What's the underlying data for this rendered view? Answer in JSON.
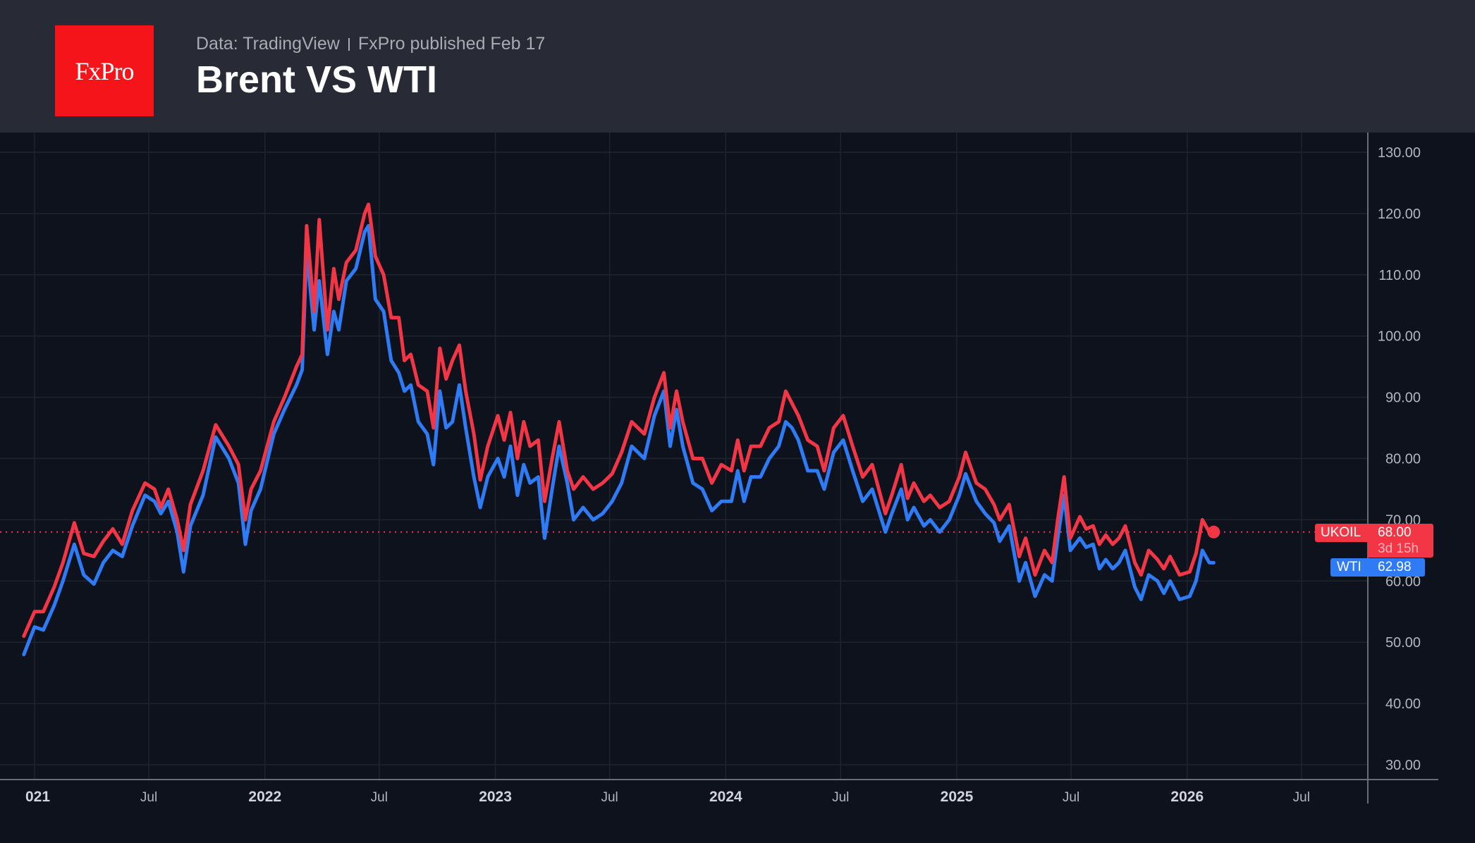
{
  "header": {
    "logo_text": "FxPro",
    "source": "Data: TradingView",
    "published": "FxPro published Feb 17",
    "title": "Brent VS WTI"
  },
  "colors": {
    "brent": "#f23645",
    "wti": "#2f7bf5",
    "background": "#0d121d",
    "header": "#282a35",
    "logo": "#f5141a"
  },
  "price_tags": {
    "ukoil_label": "UKOIL",
    "ukoil_value": "68.00",
    "ukoil_countdown": "3d 15h",
    "wti_label": "WTI",
    "wti_value": "62.98"
  },
  "chart_data": {
    "type": "line",
    "title": "Brent VS WTI",
    "ylim": [
      30,
      130
    ],
    "y_ticks": [
      "30.00",
      "40.00",
      "50.00",
      "60.00",
      "70.00",
      "80.00",
      "90.00",
      "100.00",
      "110.00",
      "120.00",
      "130.00"
    ],
    "x_ticks": [
      {
        "label": "021",
        "date": "2021-01-01",
        "bold": true
      },
      {
        "label": "Jul",
        "date": "2021-07-01",
        "bold": false
      },
      {
        "label": "2022",
        "date": "2022-01-01",
        "bold": true
      },
      {
        "label": "Jul",
        "date": "2022-07-01",
        "bold": false
      },
      {
        "label": "2023",
        "date": "2023-01-01",
        "bold": true
      },
      {
        "label": "Jul",
        "date": "2023-07-01",
        "bold": false
      },
      {
        "label": "2024",
        "date": "2024-01-01",
        "bold": true
      },
      {
        "label": "Jul",
        "date": "2024-07-01",
        "bold": false
      },
      {
        "label": "2025",
        "date": "2025-01-01",
        "bold": true
      },
      {
        "label": "Jul",
        "date": "2025-07-01",
        "bold": false
      },
      {
        "label": "2026",
        "date": "2026-01-01",
        "bold": true
      },
      {
        "label": "Jul",
        "date": "2026-07-01",
        "bold": false
      }
    ],
    "grid": true,
    "current_price_line": 68.0,
    "x": [
      "2020-12-15",
      "2021-01-01",
      "2021-01-15",
      "2021-02-01",
      "2021-02-15",
      "2021-03-05",
      "2021-03-20",
      "2021-04-05",
      "2021-04-20",
      "2021-05-05",
      "2021-05-20",
      "2021-06-05",
      "2021-06-25",
      "2021-07-10",
      "2021-07-20",
      "2021-08-01",
      "2021-08-15",
      "2021-08-25",
      "2021-09-05",
      "2021-09-25",
      "2021-10-15",
      "2021-11-05",
      "2021-11-20",
      "2021-12-01",
      "2021-12-10",
      "2021-12-25",
      "2022-01-15",
      "2022-02-01",
      "2022-02-20",
      "2022-03-01",
      "2022-03-08",
      "2022-03-20",
      "2022-03-28",
      "2022-04-10",
      "2022-04-20",
      "2022-04-28",
      "2022-05-10",
      "2022-05-25",
      "2022-06-08",
      "2022-06-14",
      "2022-06-25",
      "2022-07-08",
      "2022-07-20",
      "2022-08-01",
      "2022-08-10",
      "2022-08-20",
      "2022-09-01",
      "2022-09-15",
      "2022-09-25",
      "2022-10-05",
      "2022-10-15",
      "2022-10-25",
      "2022-11-05",
      "2022-11-15",
      "2022-11-28",
      "2022-12-08",
      "2022-12-20",
      "2023-01-05",
      "2023-01-15",
      "2023-01-25",
      "2023-02-05",
      "2023-02-15",
      "2023-02-25",
      "2023-03-10",
      "2023-03-20",
      "2023-04-01",
      "2023-04-12",
      "2023-04-25",
      "2023-05-05",
      "2023-05-20",
      "2023-06-05",
      "2023-06-20",
      "2023-07-05",
      "2023-07-20",
      "2023-08-05",
      "2023-08-25",
      "2023-09-10",
      "2023-09-25",
      "2023-10-05",
      "2023-10-15",
      "2023-10-25",
      "2023-11-10",
      "2023-11-25",
      "2023-12-10",
      "2023-12-25",
      "2024-01-10",
      "2024-01-20",
      "2024-01-30",
      "2024-02-10",
      "2024-02-25",
      "2024-03-10",
      "2024-03-25",
      "2024-04-05",
      "2024-04-15",
      "2024-04-25",
      "2024-05-10",
      "2024-05-25",
      "2024-06-05",
      "2024-06-20",
      "2024-07-05",
      "2024-07-20",
      "2024-08-05",
      "2024-08-20",
      "2024-09-10",
      "2024-09-20",
      "2024-10-05",
      "2024-10-15",
      "2024-10-25",
      "2024-11-10",
      "2024-11-20",
      "2024-12-05",
      "2024-12-20",
      "2025-01-05",
      "2025-01-15",
      "2025-02-01",
      "2025-02-15",
      "2025-03-01",
      "2025-03-10",
      "2025-03-25",
      "2025-04-10",
      "2025-04-20",
      "2025-05-05",
      "2025-05-20",
      "2025-06-01",
      "2025-06-10",
      "2025-06-20",
      "2025-06-30",
      "2025-07-15",
      "2025-07-25",
      "2025-08-05",
      "2025-08-15",
      "2025-08-25",
      "2025-09-05",
      "2025-09-15",
      "2025-09-25",
      "2025-10-10",
      "2025-10-20",
      "2025-11-01",
      "2025-11-15",
      "2025-11-25",
      "2025-12-05",
      "2025-12-20",
      "2026-01-05",
      "2026-01-15",
      "2026-01-25",
      "2026-02-05",
      "2026-02-12"
    ],
    "series": [
      {
        "name": "UKOIL",
        "color": "#f23645",
        "values": [
          51,
          55,
          55,
          59,
          63,
          69.5,
          64.5,
          64,
          66.5,
          68.5,
          66,
          71.5,
          76,
          75,
          72,
          75,
          70,
          65,
          72.5,
          78,
          85.5,
          82,
          79,
          70,
          75,
          78,
          86,
          90,
          95,
          97,
          118,
          104,
          119,
          101,
          111,
          106,
          112,
          114,
          120,
          121.5,
          113,
          110,
          103,
          103,
          96,
          97,
          92,
          91,
          85,
          98,
          93,
          96,
          98.5,
          91,
          84,
          76.5,
          82,
          87,
          83,
          87.5,
          80,
          86,
          82,
          83,
          73,
          80,
          86,
          78,
          75,
          77,
          75,
          76,
          77.5,
          81,
          86,
          84,
          90,
          94,
          85,
          91,
          86,
          80,
          80,
          76,
          79,
          78,
          83,
          78,
          82,
          82,
          85,
          86,
          91,
          89,
          87,
          83,
          82,
          78,
          85,
          87,
          82,
          77,
          79,
          71,
          74,
          79,
          73.5,
          76,
          73,
          74,
          72,
          73,
          77,
          81,
          76,
          75,
          72.5,
          70,
          72.5,
          64,
          67,
          61,
          65,
          63,
          70,
          77,
          67,
          70.5,
          68.5,
          69,
          66,
          67.5,
          66,
          67,
          69,
          63,
          61,
          65,
          63.5,
          62,
          64,
          61,
          61.5,
          64.5,
          70,
          68,
          68
        ]
      },
      {
        "name": "WTI",
        "color": "#2f7bf5",
        "values": [
          48,
          52.5,
          52,
          56,
          60,
          66,
          61,
          59.5,
          63,
          65,
          64,
          69,
          74,
          73,
          71,
          73,
          68,
          61.5,
          69,
          74,
          83.5,
          80,
          76,
          66,
          71.5,
          75,
          84,
          88,
          92,
          94.5,
          114,
          101,
          109,
          97,
          104,
          101,
          109,
          111,
          117,
          118,
          106,
          104,
          96,
          94,
          91,
          92,
          86,
          84,
          79,
          91,
          85,
          86,
          92,
          85,
          77,
          72,
          77,
          80,
          77,
          82,
          74,
          79,
          76,
          77,
          67,
          75,
          82,
          76,
          70,
          72,
          70,
          71,
          73,
          76,
          82,
          80,
          87,
          91,
          82,
          88,
          82,
          76,
          75,
          71.5,
          73,
          73,
          78,
          73,
          77,
          77,
          80,
          82,
          86,
          85,
          83,
          78,
          78,
          75,
          81,
          83,
          78,
          73,
          75,
          68,
          71,
          75,
          70,
          72,
          69,
          70,
          68,
          70,
          74,
          77.5,
          73,
          71,
          69.5,
          66.5,
          69,
          60,
          63,
          57.5,
          61,
          60,
          67,
          74,
          65,
          67,
          65.5,
          66,
          62,
          63.5,
          62,
          63,
          65,
          59,
          57,
          61,
          60,
          58,
          60,
          57,
          57.5,
          60,
          65,
          63,
          62.98
        ]
      }
    ]
  }
}
